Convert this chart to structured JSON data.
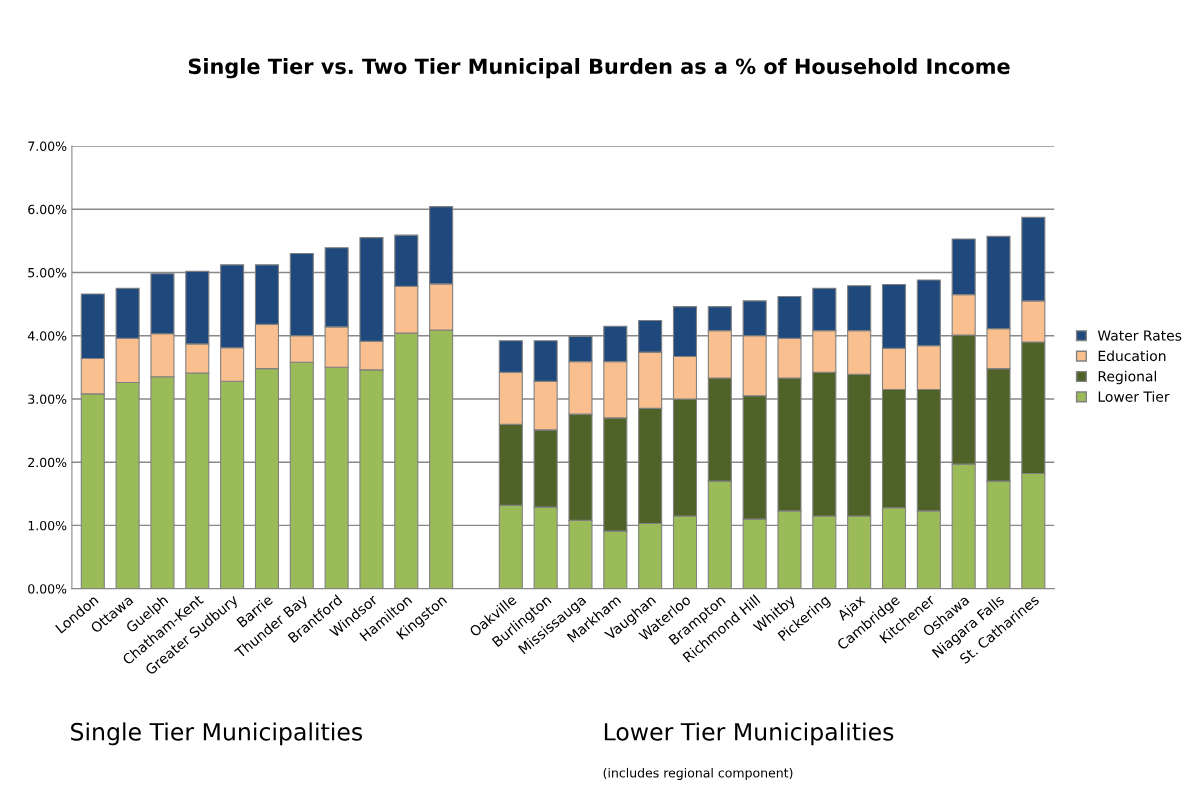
{
  "chart_data": {
    "type": "bar",
    "stacked": true,
    "title": "Single Tier vs. Two Tier Municipal Burden as a % of Household Income",
    "categories": [
      "London",
      "Ottawa",
      "Guelph",
      "Chatham-Kent",
      "Greater Sudbury",
      "Barrie",
      "Thunder Bay",
      "Brantford",
      "Windsor",
      "Hamilton",
      "Kingston",
      null,
      "Oakville",
      "Burlington",
      "Mississauga",
      "Markham",
      "Vaughan",
      "Waterloo",
      "Brampton",
      "Richmond Hill",
      "Whitby",
      "Pickering",
      "Ajax",
      "Cambridge",
      "Kitchener",
      "Oshawa",
      "Niagara Falls",
      "St. Catharines"
    ],
    "series": [
      {
        "name": "Lower Tier",
        "color": "#9bbb59",
        "values": [
          3.08,
          3.26,
          3.35,
          3.41,
          3.28,
          3.48,
          3.58,
          3.5,
          3.46,
          4.04,
          4.09,
          null,
          1.32,
          1.29,
          1.08,
          0.91,
          1.03,
          1.15,
          1.7,
          1.1,
          1.23,
          1.15,
          1.15,
          1.28,
          1.23,
          1.97,
          1.7,
          1.82
        ]
      },
      {
        "name": "Regional",
        "color": "#4f6228",
        "values": [
          null,
          null,
          null,
          null,
          null,
          null,
          null,
          null,
          null,
          null,
          null,
          null,
          1.28,
          1.22,
          1.68,
          1.79,
          1.82,
          1.85,
          1.63,
          1.95,
          2.1,
          2.27,
          2.24,
          1.87,
          1.92,
          2.04,
          1.78,
          2.08
        ]
      },
      {
        "name": "Education",
        "color": "#fabf8f",
        "values": [
          0.56,
          0.7,
          0.68,
          0.46,
          0.53,
          0.7,
          0.42,
          0.64,
          0.45,
          0.74,
          0.73,
          null,
          0.82,
          0.77,
          0.83,
          0.89,
          0.89,
          0.67,
          0.75,
          0.95,
          0.63,
          0.66,
          0.69,
          0.65,
          0.69,
          0.64,
          0.63,
          0.65
        ]
      },
      {
        "name": "Water Rates",
        "color": "#1f497d",
        "values": [
          1.02,
          0.79,
          0.95,
          1.15,
          1.31,
          0.94,
          1.3,
          1.25,
          1.64,
          0.81,
          1.22,
          null,
          0.5,
          0.64,
          0.4,
          0.56,
          0.5,
          0.79,
          0.38,
          0.55,
          0.66,
          0.67,
          0.71,
          1.01,
          1.04,
          0.88,
          1.46,
          1.32
        ]
      }
    ],
    "ylim": [
      0,
      7
    ],
    "yticks": [
      {
        "value": 0,
        "label": "0.00%"
      },
      {
        "value": 1,
        "label": "1.00%"
      },
      {
        "value": 2,
        "label": "2.00%"
      },
      {
        "value": 3,
        "label": "3.00%"
      },
      {
        "value": 4,
        "label": "4.00%"
      },
      {
        "value": 5,
        "label": "5.00%"
      },
      {
        "value": 6,
        "label": "6.00%"
      },
      {
        "value": 7,
        "label": "7.00%"
      }
    ],
    "grid": "y",
    "legend": "right",
    "annotations": [
      "Single Tier Municipalities",
      "Lower Tier Municipalities",
      "(includes regional component)"
    ]
  }
}
